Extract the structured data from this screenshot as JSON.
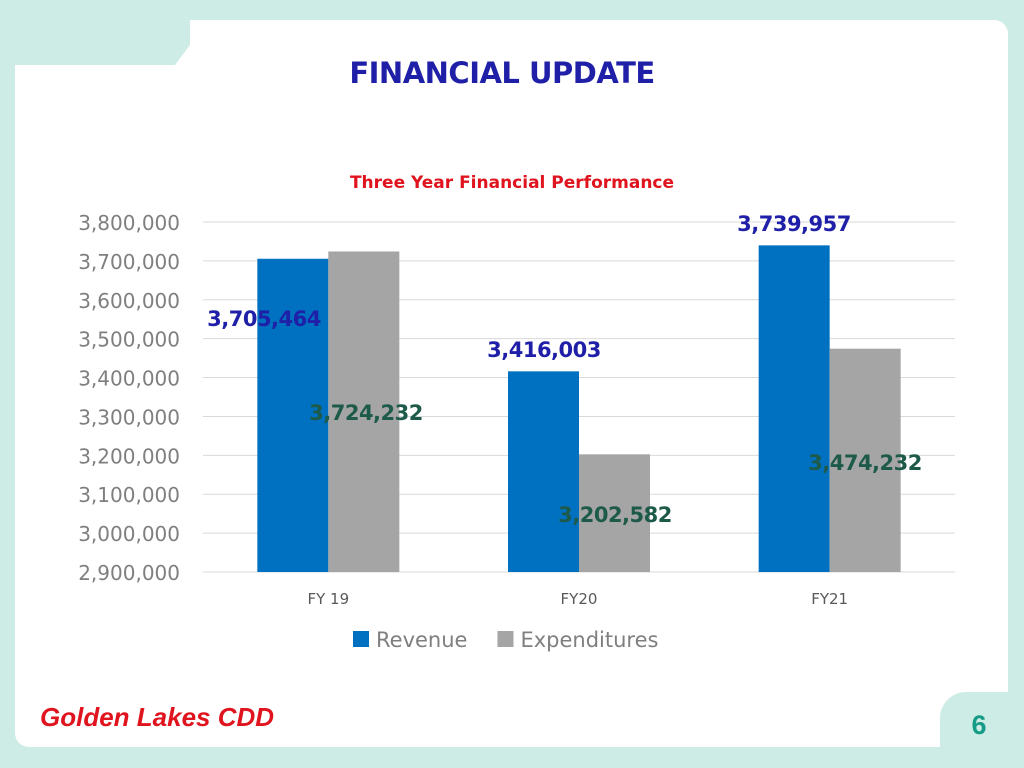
{
  "slide": {
    "title": "FINANCIAL UPDATE",
    "footer": "Golden Lakes CDD",
    "page_number": "6"
  },
  "colors": {
    "title": "#1f1fa8",
    "chart_title": "#e0141e",
    "revenue": "#0070c0",
    "expenditures": "#a5a5a5",
    "revenue_label": "#1f1fa8",
    "expenditures_label": "#1e5a4a",
    "axis_text": "#7f7f7f",
    "footer": "#e0141e",
    "page_number": "#169b87",
    "background": "#cdece6"
  },
  "chart_data": {
    "type": "bar",
    "title": "Three Year Financial Performance",
    "categories": [
      "FY 19",
      "FY20",
      "FY21"
    ],
    "series": [
      {
        "name": "Revenue",
        "values": [
          3705464,
          3416003,
          3739957
        ]
      },
      {
        "name": "Expenditures",
        "values": [
          3724232,
          3202582,
          3474232
        ]
      }
    ],
    "data_labels": [
      [
        "3,705,464",
        "3,416,003",
        "3,739,957"
      ],
      [
        "3,724,232",
        "3,202,582",
        "3,474,232"
      ]
    ],
    "ylim": [
      2900000,
      3800000
    ],
    "yticks": [
      "2,900,000",
      "3,000,000",
      "3,100,000",
      "3,200,000",
      "3,300,000",
      "3,400,000",
      "3,500,000",
      "3,600,000",
      "3,700,000",
      "3,800,000"
    ],
    "xlabel": "",
    "ylabel": "",
    "grid": true,
    "legend": "bottom"
  }
}
